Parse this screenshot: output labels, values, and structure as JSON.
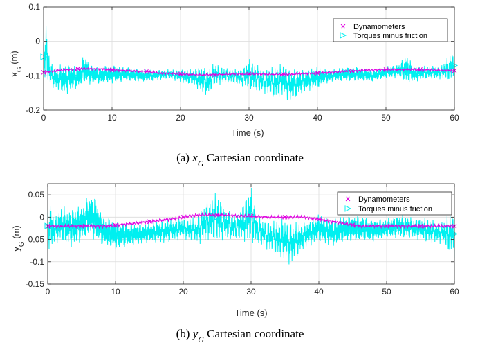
{
  "colors": {
    "dynamometers": "#e000e0",
    "torques": "#00f0f0",
    "axis": "#262626",
    "grid": "#dcdcdc"
  },
  "chart_data": [
    {
      "type": "line",
      "id": "xg",
      "caption": {
        "prefix": "(a) ",
        "var": "x",
        "sub": "G",
        "suffix": " Cartesian coordinate"
      },
      "xlabel": "Time (s)",
      "ylabel": {
        "var": "x",
        "sub": "G",
        "unit": " (m)"
      },
      "xlim": [
        0,
        60
      ],
      "ylim": [
        -0.2,
        0.1
      ],
      "xticks": [
        0,
        10,
        20,
        30,
        40,
        50,
        60
      ],
      "yticks": [
        -0.2,
        -0.1,
        0,
        0.1
      ],
      "ytick_labels": [
        "-0.2",
        "-0.1",
        "0",
        "0.1"
      ],
      "grid": true,
      "legend_position": "top-right",
      "series": [
        {
          "name": "Torques minus friction",
          "marker": "triangle-right",
          "color": "#00f0f0",
          "x": [
            0,
            0.3,
            0.6,
            1,
            2,
            3,
            4,
            5,
            6,
            7,
            8,
            10,
            12,
            15,
            18,
            20,
            22,
            23,
            24,
            25,
            27,
            29,
            30,
            32,
            34,
            35,
            36,
            38,
            40,
            42,
            44,
            46,
            48,
            50,
            52,
            53,
            54,
            56,
            58,
            60
          ],
          "upper": [
            0.01,
            0.07,
            0.01,
            -0.06,
            -0.07,
            -0.06,
            -0.06,
            -0.07,
            -0.03,
            -0.06,
            -0.07,
            -0.06,
            -0.07,
            -0.08,
            -0.08,
            -0.08,
            -0.08,
            -0.07,
            -0.08,
            -0.06,
            -0.08,
            -0.08,
            -0.05,
            -0.08,
            -0.07,
            -0.06,
            -0.08,
            -0.08,
            -0.07,
            -0.08,
            -0.07,
            -0.07,
            -0.08,
            -0.07,
            -0.06,
            -0.03,
            -0.07,
            -0.07,
            -0.07,
            -0.02
          ],
          "lower": [
            -0.1,
            -0.11,
            -0.13,
            -0.13,
            -0.15,
            -0.16,
            -0.15,
            -0.14,
            -0.13,
            -0.13,
            -0.13,
            -0.13,
            -0.12,
            -0.12,
            -0.11,
            -0.12,
            -0.13,
            -0.15,
            -0.16,
            -0.13,
            -0.12,
            -0.13,
            -0.14,
            -0.15,
            -0.17,
            -0.16,
            -0.18,
            -0.15,
            -0.14,
            -0.12,
            -0.12,
            -0.12,
            -0.12,
            -0.11,
            -0.11,
            -0.13,
            -0.12,
            -0.11,
            -0.11,
            -0.12
          ]
        },
        {
          "name": "Dynamometers",
          "marker": "x",
          "color": "#e000e0",
          "x": [
            0,
            2,
            5,
            8,
            10,
            12,
            15,
            17,
            20,
            22,
            25,
            27,
            30,
            32,
            35,
            38,
            40,
            42,
            45,
            47,
            50,
            52,
            55,
            58,
            60
          ],
          "y": [
            -0.09,
            -0.085,
            -0.08,
            -0.08,
            -0.083,
            -0.085,
            -0.088,
            -0.092,
            -0.095,
            -0.097,
            -0.097,
            -0.095,
            -0.095,
            -0.095,
            -0.096,
            -0.094,
            -0.092,
            -0.09,
            -0.086,
            -0.084,
            -0.082,
            -0.082,
            -0.082,
            -0.084,
            -0.085
          ]
        }
      ]
    },
    {
      "type": "line",
      "id": "yg",
      "caption": {
        "prefix": "(b) ",
        "var": "y",
        "sub": "G",
        "suffix": " Cartesian coordinate"
      },
      "xlabel": "Time (s)",
      "ylabel": {
        "var": "y",
        "sub": "G",
        "unit": " (m)"
      },
      "xlim": [
        0,
        60
      ],
      "ylim": [
        -0.15,
        0.075
      ],
      "xticks": [
        0,
        10,
        20,
        30,
        40,
        50,
        60
      ],
      "yticks": [
        -0.15,
        -0.1,
        -0.05,
        0,
        0.05
      ],
      "ytick_labels": [
        "-0.15",
        "-0.1",
        "-0.05",
        "0",
        "0.05"
      ],
      "grid": true,
      "legend_position": "top-right",
      "series": [
        {
          "name": "Torques minus friction",
          "marker": "triangle-right",
          "color": "#00f0f0",
          "x": [
            0,
            0.5,
            1,
            2,
            3,
            4,
            5,
            6,
            7,
            8,
            10,
            12,
            15,
            18,
            20,
            22,
            23,
            24,
            25,
            26,
            28,
            30,
            31,
            33,
            35,
            36,
            38,
            40,
            42,
            44,
            46,
            48,
            50,
            52,
            54,
            56,
            58,
            60
          ],
          "upper": [
            0.03,
            0.035,
            0.0,
            0.03,
            0.02,
            0.03,
            0.03,
            0.055,
            0.06,
            0.01,
            0.0,
            -0.01,
            -0.01,
            0.0,
            0.0,
            0.0,
            0.03,
            0.04,
            0.06,
            0.02,
            0.005,
            0.07,
            0.0,
            -0.01,
            0.0,
            -0.01,
            -0.01,
            0.01,
            0.0,
            0.01,
            0.01,
            0.0,
            0.0,
            0.01,
            0.0,
            0.0,
            -0.01,
            0.02
          ],
          "lower": [
            -0.07,
            -0.08,
            -0.06,
            -0.06,
            -0.07,
            -0.07,
            -0.06,
            -0.05,
            -0.06,
            -0.07,
            -0.08,
            -0.07,
            -0.06,
            -0.06,
            -0.05,
            -0.06,
            -0.06,
            -0.05,
            -0.06,
            -0.05,
            -0.05,
            -0.06,
            -0.06,
            -0.08,
            -0.1,
            -0.11,
            -0.07,
            -0.06,
            -0.07,
            -0.06,
            -0.06,
            -0.06,
            -0.05,
            -0.05,
            -0.05,
            -0.06,
            -0.06,
            -0.095
          ]
        },
        {
          "name": "Dynamometers",
          "marker": "x",
          "color": "#e000e0",
          "x": [
            0,
            3,
            6,
            9,
            12,
            15,
            18,
            20,
            22,
            24,
            26,
            28,
            30,
            32,
            35,
            38,
            40,
            42,
            44,
            46,
            48,
            50,
            52,
            55,
            58,
            60
          ],
          "y": [
            -0.02,
            -0.02,
            -0.02,
            -0.02,
            -0.015,
            -0.01,
            -0.005,
            0.0,
            0.005,
            0.005,
            0.005,
            0.003,
            0.002,
            0.0,
            0.0,
            0.0,
            -0.005,
            -0.01,
            -0.015,
            -0.02,
            -0.02,
            -0.02,
            -0.02,
            -0.02,
            -0.02,
            -0.02
          ]
        }
      ]
    }
  ]
}
